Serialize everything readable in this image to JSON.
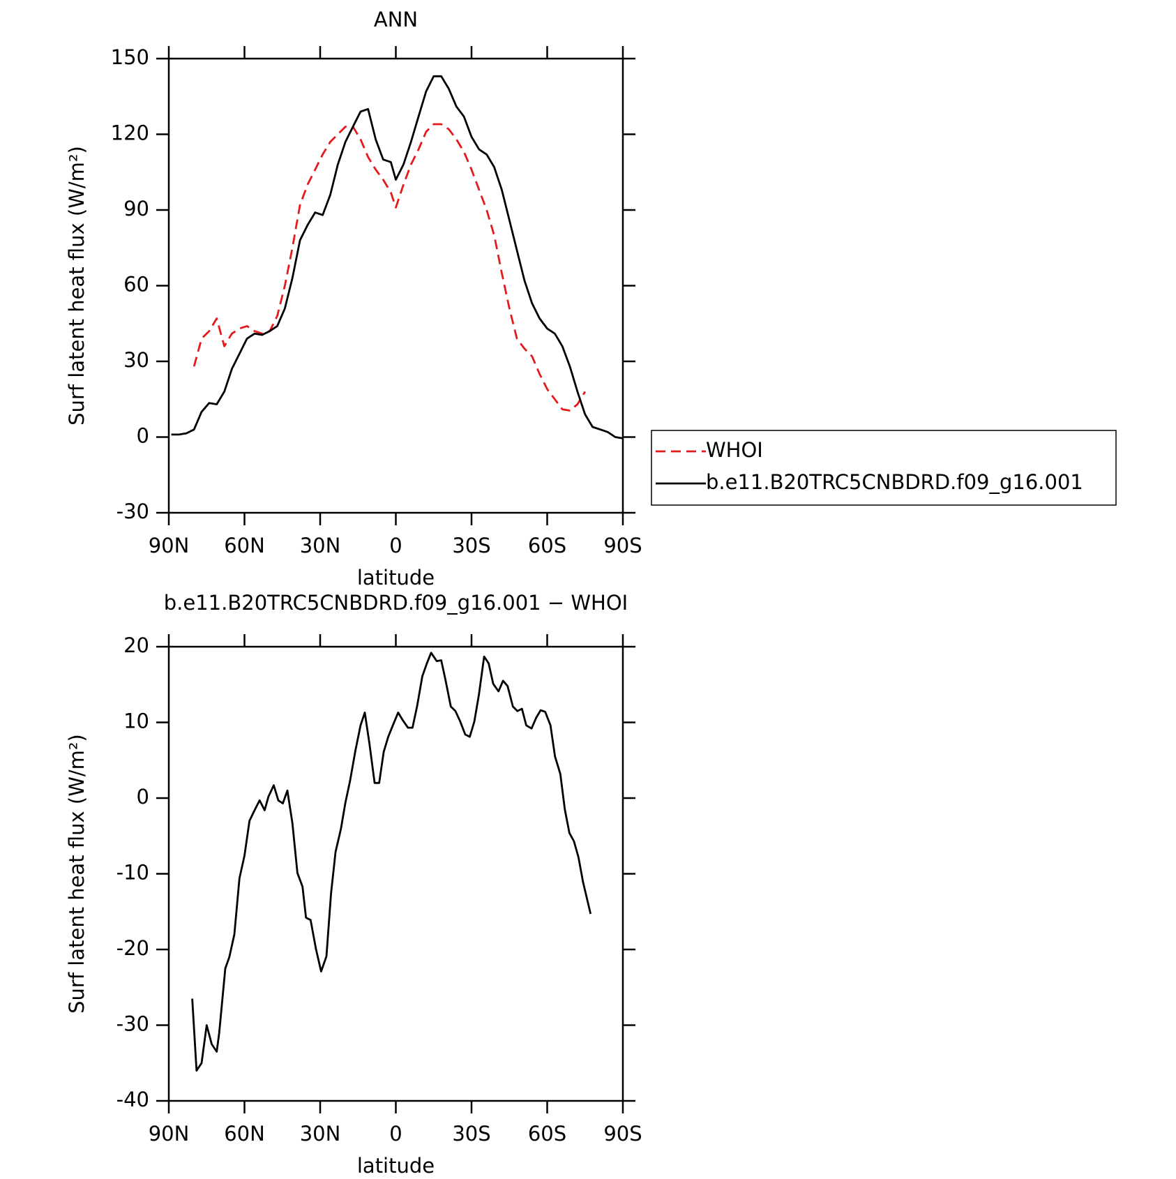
{
  "chart_data": [
    {
      "type": "line",
      "title": "ANN",
      "xlabel": "latitude",
      "ylabel": "Surf latent heat flux (W/m²)",
      "xlim": [
        90,
        -90
      ],
      "xticks": [
        {
          "value": 90,
          "label": "90N"
        },
        {
          "value": 60,
          "label": "60N"
        },
        {
          "value": 30,
          "label": "30N"
        },
        0,
        {
          "value": -30,
          "label": "30S"
        },
        {
          "value": -60,
          "label": "60S"
        },
        {
          "value": -90,
          "label": "90S"
        }
      ],
      "ylim": [
        -30,
        150
      ],
      "yticks": [
        -30,
        0,
        30,
        60,
        90,
        120,
        150
      ],
      "legend": "right",
      "series": [
        {
          "name": "WHOI",
          "color": "#e41a1c",
          "dash": true,
          "x": [
            80,
            77,
            74,
            71,
            68,
            65,
            62,
            59,
            56,
            53,
            50,
            47,
            44,
            41,
            38,
            35,
            32,
            29,
            26,
            23,
            20,
            17,
            14,
            11,
            8,
            5,
            2,
            0,
            -3,
            -6,
            -9,
            -12,
            -15,
            -18,
            -21,
            -24,
            -27,
            -30,
            -33,
            -36,
            -39,
            -42,
            -45,
            -48,
            -51,
            -54,
            -57,
            -60,
            -63,
            -66,
            -69,
            -72,
            -75
          ],
          "values": [
            28,
            39,
            42,
            47,
            36,
            41,
            43,
            44,
            42,
            41,
            42,
            48,
            60,
            75,
            92,
            100,
            106,
            112,
            117,
            120,
            123,
            123,
            118,
            111,
            106,
            102,
            97,
            91,
            100,
            108,
            114,
            121,
            124,
            124,
            122,
            118,
            113,
            106,
            98,
            90,
            80,
            65,
            51,
            39,
            35,
            32,
            25,
            19,
            15,
            11,
            10.5,
            13,
            18
          ]
        },
        {
          "name": "b.e11.B20TRC5CNBDRD.f09_g16.001",
          "color": "#000000",
          "dash": false,
          "x": [
            89,
            86,
            83,
            80,
            77,
            74,
            71,
            68,
            65,
            62,
            59,
            56,
            53,
            50,
            47,
            44,
            41,
            38,
            35,
            32,
            29,
            26,
            23,
            20,
            17,
            14,
            11,
            8,
            5,
            2,
            0,
            -3,
            -6,
            -9,
            -12,
            -15,
            -18,
            -21,
            -24,
            -27,
            -30,
            -33,
            -36,
            -39,
            -42,
            -45,
            -48,
            -51,
            -54,
            -57,
            -60,
            -63,
            -66,
            -69,
            -72,
            -75,
            -78,
            -81,
            -84,
            -87,
            -90
          ],
          "values": [
            1,
            1,
            1.5,
            3,
            10,
            13.5,
            13,
            18,
            27,
            33,
            39,
            41,
            40.5,
            42,
            44,
            51,
            63,
            78,
            84,
            89,
            88,
            96,
            108,
            117,
            123,
            129,
            130,
            118,
            110,
            109,
            102,
            108,
            117,
            127,
            137,
            143,
            143,
            138,
            131,
            127,
            119,
            114,
            112,
            107,
            98,
            86,
            74,
            62,
            53,
            47,
            43,
            41,
            36,
            28,
            18,
            9,
            4,
            3,
            2,
            0,
            -0.5
          ]
        }
      ]
    },
    {
      "type": "line",
      "title": "b.e11.B20TRC5CNBDRD.f09_g16.001 − WHOI",
      "xlabel": "latitude",
      "ylabel": "Surf latent heat flux (W/m²)",
      "xlim": [
        90,
        -90
      ],
      "xticks": [
        {
          "value": 90,
          "label": "90N"
        },
        {
          "value": 60,
          "label": "60N"
        },
        {
          "value": 30,
          "label": "30N"
        },
        0,
        {
          "value": -30,
          "label": "30S"
        },
        {
          "value": -60,
          "label": "60S"
        },
        {
          "value": -90,
          "label": "90S"
        }
      ],
      "ylim": [
        -40,
        20
      ],
      "yticks": [
        -40,
        -30,
        -20,
        -10,
        0,
        10,
        20
      ],
      "series": [
        {
          "color": "#000000",
          "x": [
            80.7,
            79,
            77,
            75,
            73,
            71,
            70,
            67.6,
            66,
            64,
            62,
            60,
            58,
            56,
            54,
            52,
            50.5,
            48.4,
            46.6,
            44.8,
            43,
            41,
            39,
            37,
            35.6,
            33.8,
            31.7,
            29.6,
            27.5,
            25.7,
            23.9,
            21.8,
            20,
            18.2,
            16,
            14,
            12.3,
            10.5,
            8.4,
            6.6,
            4.8,
            3,
            1.2,
            -0.9,
            -2.7,
            -4.8,
            -6.6,
            -8.4,
            -10.5,
            -12.3,
            -14,
            -16.2,
            -18,
            -19.7,
            -21.8,
            -23.6,
            -25.4,
            -27.5,
            -29.3,
            -31.1,
            -32.9,
            -35,
            -36.8,
            -38.6,
            -40.7,
            -42.5,
            -44.3,
            -46.4,
            -48.2,
            -50,
            -51.7,
            -53.8,
            -55.6,
            -57.4,
            -59.2,
            -61.3,
            -63.1,
            -65.2,
            -67,
            -68.8,
            -70.6,
            -72.4,
            -74.2,
            -77.2
          ],
          "values": [
            -26.5,
            -36,
            -35,
            -30,
            -32.5,
            -33.5,
            -31,
            -22.5,
            -21,
            -18,
            -10.6,
            -7.6,
            -3,
            -1.6,
            -0.3,
            -1.6,
            0.2,
            1.7,
            -0.3,
            -0.7,
            1,
            -3.3,
            -9.9,
            -11.7,
            -15.8,
            -16.1,
            -19.9,
            -22.9,
            -20.9,
            -12.6,
            -7.1,
            -4.1,
            -0.6,
            2.2,
            6.3,
            9.6,
            11.3,
            7.3,
            2,
            2,
            6.1,
            8.1,
            9.6,
            11.3,
            10.3,
            9.3,
            9.3,
            12.1,
            16.1,
            17.8,
            19.2,
            18.1,
            18.2,
            15.6,
            12.1,
            11.5,
            10.2,
            8.4,
            8.1,
            10.1,
            13.6,
            18.7,
            17.8,
            15.1,
            14.1,
            15.5,
            14.8,
            12.1,
            11.5,
            11.8,
            9.6,
            9.2,
            10.6,
            11.6,
            11.4,
            9.6,
            5.5,
            3.2,
            -1.5,
            -4.6,
            -5.7,
            -7.8,
            -11.1,
            -15.3
          ]
        }
      ]
    }
  ]
}
